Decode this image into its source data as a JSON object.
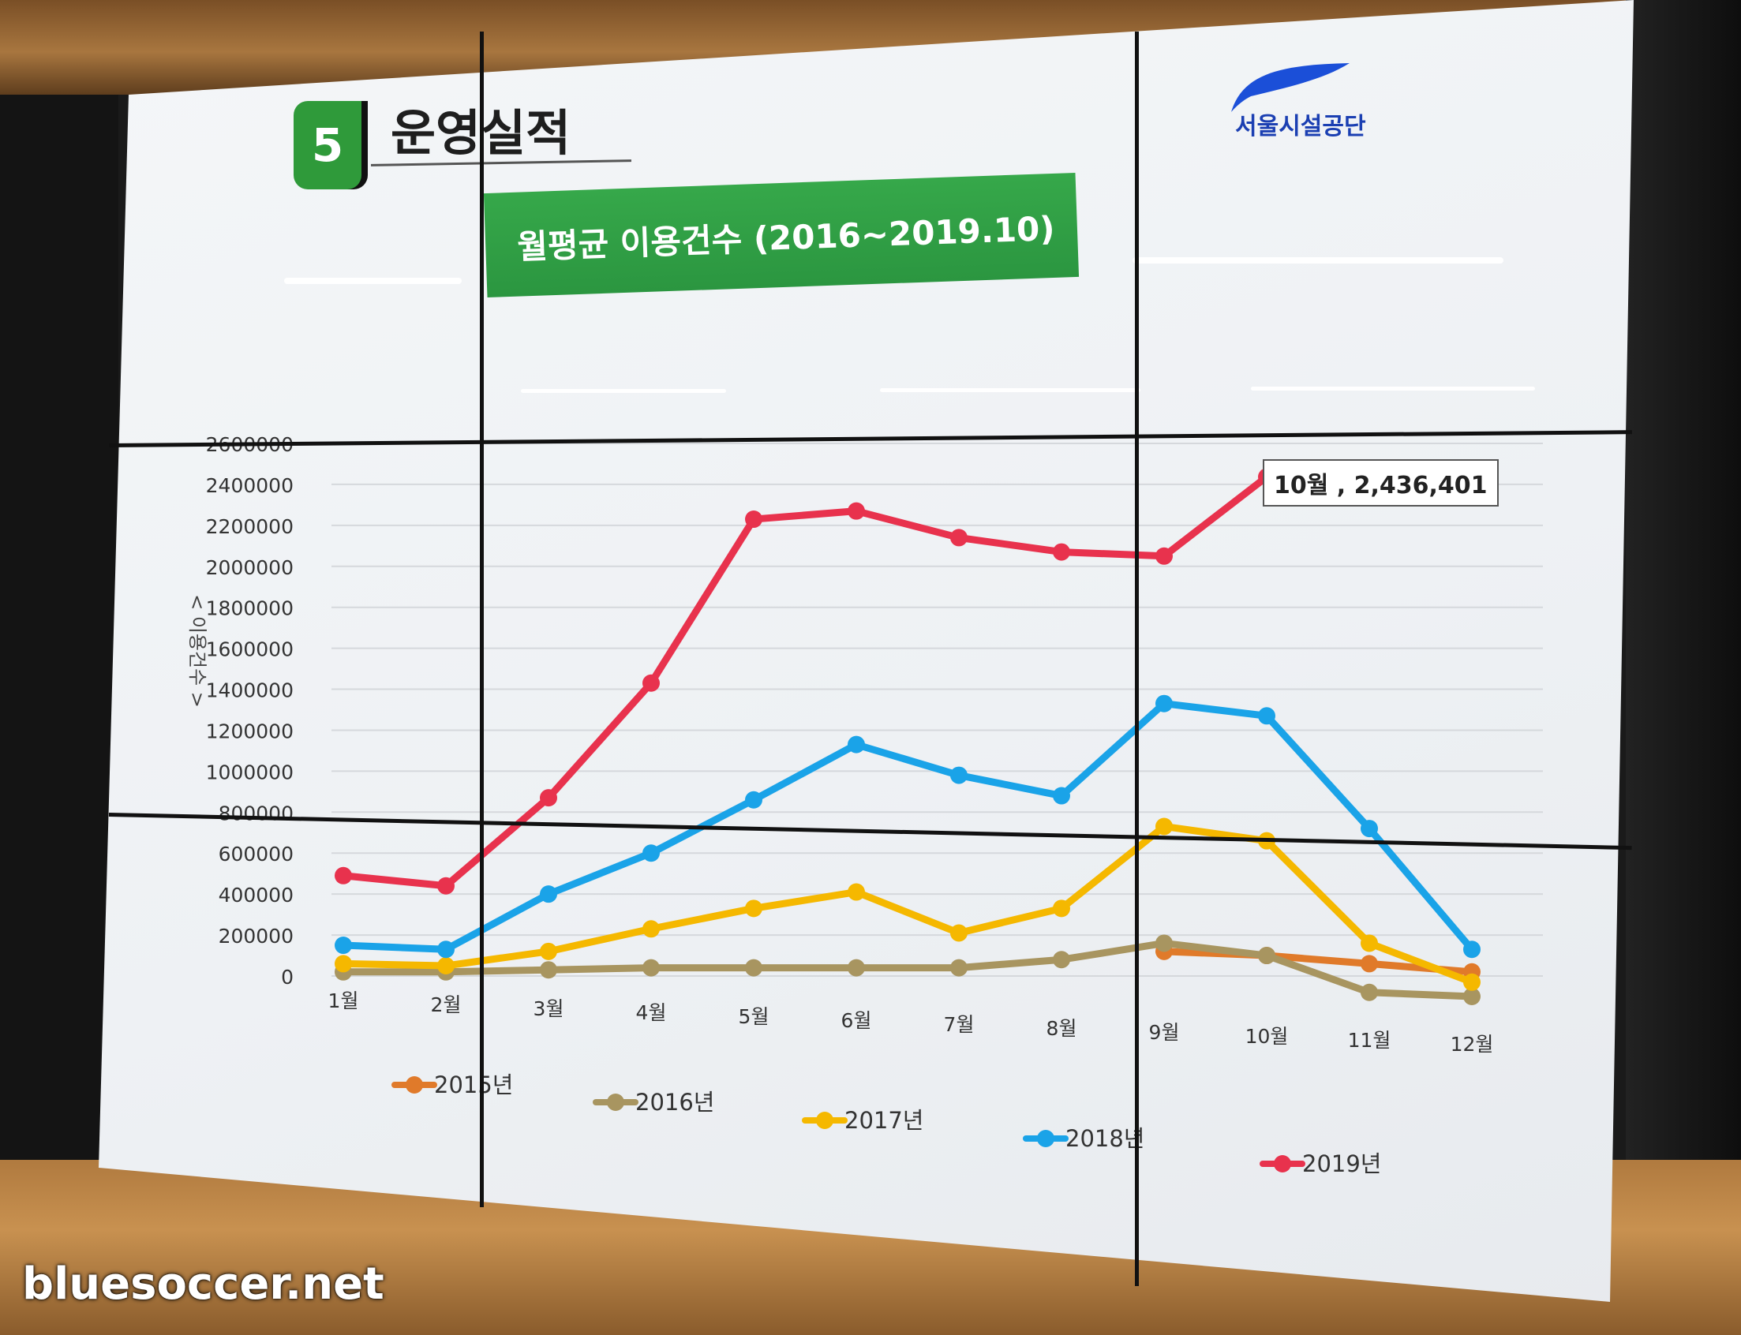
{
  "slide": {
    "badge_number": "5",
    "heading": "운영실적",
    "banner": "월평균 이용건수 (2016~2019.10)",
    "logo_text": "서울시설공단"
  },
  "watermark": "bluesoccer.net",
  "chart_data": {
    "type": "line",
    "title": "월평균 이용건수 (2016~2019.10)",
    "ylabel": "< 이용건수 >",
    "ylim": [
      0,
      2600000
    ],
    "yticks": [
      "2600000",
      "2400000",
      "2200000",
      "2000000",
      "1800000",
      "1600000",
      "1400000",
      "1200000",
      "1000000",
      "800000",
      "600000",
      "400000",
      "200000",
      "0"
    ],
    "categories": [
      "1월",
      "2월",
      "3월",
      "4월",
      "5월",
      "6월",
      "7월",
      "8월",
      "9월",
      "10월",
      "11월",
      "12월"
    ],
    "grid": true,
    "legend_placement": "bottom",
    "series": [
      {
        "name": "2015년",
        "color": "#e07a2a",
        "values": [
          null,
          null,
          null,
          null,
          null,
          null,
          null,
          null,
          120000,
          100000,
          60000,
          20000
        ]
      },
      {
        "name": "2016년",
        "color": "#a89560",
        "values": [
          20000,
          20000,
          30000,
          40000,
          40000,
          40000,
          40000,
          80000,
          160000,
          100000,
          -80000,
          -100000
        ]
      },
      {
        "name": "2017년",
        "color": "#f5b800",
        "values": [
          60000,
          50000,
          120000,
          230000,
          330000,
          410000,
          210000,
          330000,
          730000,
          660000,
          160000,
          -30000
        ]
      },
      {
        "name": "2018년",
        "color": "#1aa3e8",
        "values": [
          150000,
          130000,
          400000,
          600000,
          860000,
          1130000,
          980000,
          880000,
          1330000,
          1270000,
          720000,
          130000
        ]
      },
      {
        "name": "2019년",
        "color": "#e8324d",
        "values": [
          490000,
          440000,
          870000,
          1430000,
          2230000,
          2270000,
          2140000,
          2070000,
          2050000,
          2436401,
          null,
          null
        ]
      }
    ],
    "annotation": "10월 , 2,436,401"
  }
}
